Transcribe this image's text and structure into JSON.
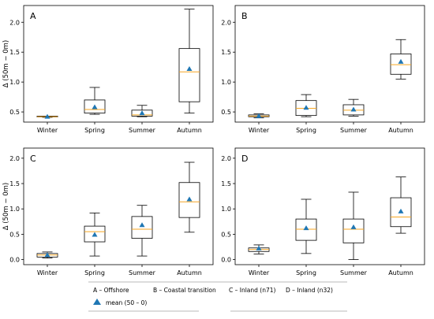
{
  "chart_data": [
    {
      "panel": "A",
      "type": "box",
      "categories": [
        "Winter",
        "Spring",
        "Summer",
        "Autumn"
      ],
      "ylabel": "Δ (50m − 0m)",
      "ylim": [
        0.33,
        2.28
      ],
      "yticks": [
        "0.5",
        "1.0",
        "1.5",
        "2.0"
      ],
      "ytick_values": [
        0.5,
        1.0,
        1.5,
        2.0
      ],
      "boxes": [
        {
          "whislo": 0.41,
          "q1": 0.42,
          "med": 0.42,
          "q3": 0.43,
          "whishi": 0.43,
          "mean": 0.42
        },
        {
          "whislo": 0.46,
          "q1": 0.48,
          "med": 0.54,
          "q3": 0.7,
          "whishi": 0.91,
          "mean": 0.58
        },
        {
          "whislo": 0.42,
          "q1": 0.43,
          "med": 0.45,
          "q3": 0.53,
          "whishi": 0.61,
          "mean": 0.48
        },
        {
          "whislo": 0.48,
          "q1": 0.67,
          "med": 1.17,
          "q3": 1.56,
          "whishi": 2.22,
          "mean": 1.22
        }
      ]
    },
    {
      "panel": "B",
      "type": "box",
      "categories": [
        "Winter",
        "Spring",
        "Summer",
        "Autumn"
      ],
      "ylabel": "",
      "ylim": [
        0.33,
        2.28
      ],
      "yticks": [
        "0.5",
        "1.0",
        "1.5",
        "2.0"
      ],
      "ytick_values": [
        0.5,
        1.0,
        1.5,
        2.0
      ],
      "boxes": [
        {
          "whislo": 0.4,
          "q1": 0.42,
          "med": 0.43,
          "q3": 0.45,
          "whishi": 0.47,
          "mean": 0.43
        },
        {
          "whislo": 0.42,
          "q1": 0.44,
          "med": 0.56,
          "q3": 0.69,
          "whishi": 0.79,
          "mean": 0.57
        },
        {
          "whislo": 0.43,
          "q1": 0.45,
          "med": 0.53,
          "q3": 0.62,
          "whishi": 0.71,
          "mean": 0.54
        },
        {
          "whislo": 1.05,
          "q1": 1.13,
          "med": 1.29,
          "q3": 1.47,
          "whishi": 1.71,
          "mean": 1.34
        }
      ]
    },
    {
      "panel": "C",
      "type": "box",
      "categories": [
        "Winter",
        "Spring",
        "Summer",
        "Autumn"
      ],
      "ylabel": "Δ (50m − 0m)",
      "ylim": [
        -0.1,
        2.2
      ],
      "yticks": [
        "0.0",
        "0.5",
        "1.0",
        "1.5",
        "2.0"
      ],
      "ytick_values": [
        0.0,
        0.5,
        1.0,
        1.5,
        2.0
      ],
      "boxes": [
        {
          "whislo": 0.03,
          "q1": 0.05,
          "med": 0.09,
          "q3": 0.12,
          "whishi": 0.15,
          "mean": 0.09
        },
        {
          "whislo": 0.07,
          "q1": 0.35,
          "med": 0.55,
          "q3": 0.66,
          "whishi": 0.92,
          "mean": 0.49
        },
        {
          "whislo": 0.07,
          "q1": 0.42,
          "med": 0.6,
          "q3": 0.85,
          "whishi": 1.07,
          "mean": 0.68
        },
        {
          "whislo": 0.54,
          "q1": 0.83,
          "med": 1.14,
          "q3": 1.52,
          "whishi": 1.92,
          "mean": 1.19
        }
      ]
    },
    {
      "panel": "D",
      "type": "box",
      "categories": [
        "Winter",
        "Spring",
        "Summer",
        "Autumn"
      ],
      "ylabel": "",
      "ylim": [
        -0.1,
        2.2
      ],
      "yticks": [
        "0.0",
        "0.5",
        "1.0",
        "1.5",
        "2.0"
      ],
      "ytick_values": [
        0.0,
        0.5,
        1.0,
        1.5,
        2.0
      ],
      "boxes": [
        {
          "whislo": 0.11,
          "q1": 0.16,
          "med": 0.2,
          "q3": 0.23,
          "whishi": 0.29,
          "mean": 0.22
        },
        {
          "whislo": 0.12,
          "q1": 0.38,
          "med": 0.6,
          "q3": 0.8,
          "whishi": 1.19,
          "mean": 0.62
        },
        {
          "whislo": 0.0,
          "q1": 0.33,
          "med": 0.6,
          "q3": 0.8,
          "whishi": 1.33,
          "mean": 0.64
        },
        {
          "whislo": 0.52,
          "q1": 0.65,
          "med": 0.84,
          "q3": 1.22,
          "whishi": 1.63,
          "mean": 0.95
        }
      ]
    }
  ],
  "legend": {
    "items": [
      {
        "letter": "A",
        "label": "Offshore"
      },
      {
        "letter": "B",
        "label": "Coastal transition"
      },
      {
        "letter": "C",
        "label": "Inland (n71)"
      },
      {
        "letter": "D",
        "label": "Inland (n32)"
      }
    ],
    "mean_label": "mean (50 – 0)"
  },
  "colors": {
    "median": "#f5a623",
    "mean_marker": "#1f77b4",
    "box_edge": "#000000"
  }
}
